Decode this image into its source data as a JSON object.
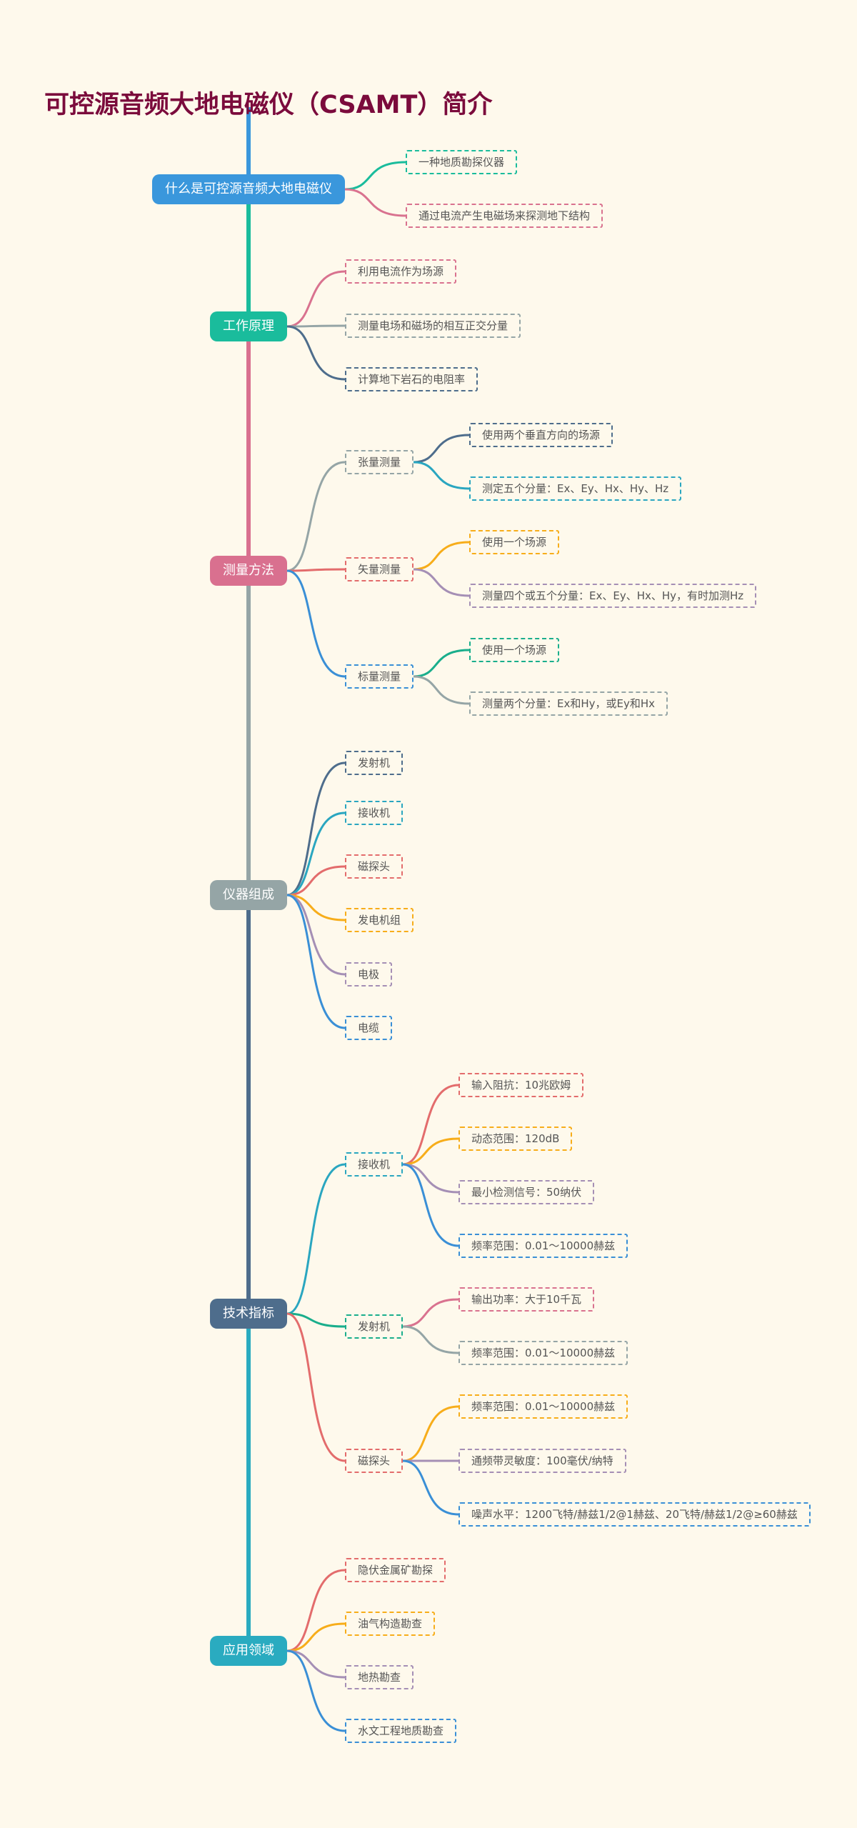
{
  "title": "可控源音频大地电磁仪（CSAMT）简介",
  "nodes": [
    {
      "label": "什么是可控源音频大地电磁仪",
      "color": "#3a97dc",
      "children": [
        {
          "label": "一种地质勘探仪器",
          "color": "#1abc9c"
        },
        {
          "label": "通过电流产生电磁场来探测地下结构",
          "color": "#d9728f"
        }
      ]
    },
    {
      "label": "工作原理",
      "color": "#1abc9c",
      "children": [
        {
          "label": "利用电流作为场源",
          "color": "#d9728f"
        },
        {
          "label": "测量电场和磁场的相互正交分量",
          "color": "#95a5a6"
        },
        {
          "label": "计算地下岩石的电阻率",
          "color": "#4e6d8c"
        }
      ]
    },
    {
      "label": "测量方法",
      "color": "#d9708f",
      "children": [
        {
          "label": "张量测量",
          "color": "#95a5a6",
          "children": [
            {
              "label": "使用两个垂直方向的场源",
              "color": "#4e6d8c"
            },
            {
              "label": "测定五个分量：Ex、Ey、Hx、Hy、Hz",
              "color": "#2aa6c0"
            }
          ]
        },
        {
          "label": "矢量测量",
          "color": "#e36c6c",
          "children": [
            {
              "label": "使用一个场源",
              "color": "#f7ad1a"
            },
            {
              "label": "测量四个或五个分量：Ex、Ey、Hx、Hy，有时加测Hz",
              "color": "#a58fb5"
            }
          ]
        },
        {
          "label": "标量测量",
          "color": "#3a8fd6",
          "children": [
            {
              "label": "使用一个场源",
              "color": "#1aae8c"
            },
            {
              "label": "测量两个分量：Ex和Hy，或Ey和Hx",
              "color": "#95a5a6"
            }
          ]
        }
      ]
    },
    {
      "label": "仪器组成",
      "color": "#95a5a6",
      "children": [
        {
          "label": "发射机",
          "color": "#4e6d8c"
        },
        {
          "label": "接收机",
          "color": "#2aa6c0"
        },
        {
          "label": "磁探头",
          "color": "#e36c6c"
        },
        {
          "label": "发电机组",
          "color": "#f7ad1a"
        },
        {
          "label": "电极",
          "color": "#a58fb5"
        },
        {
          "label": "电缆",
          "color": "#3a8fd6"
        }
      ]
    },
    {
      "label": "技术指标",
      "color": "#4e6d8c",
      "children": [
        {
          "label": "接收机",
          "color": "#2aa6c0",
          "children": [
            {
              "label": "输入阻抗：10兆欧姆",
              "color": "#e36c6c"
            },
            {
              "label": "动态范围：120dB",
              "color": "#f7ad1a"
            },
            {
              "label": "最小检测信号：50纳伏",
              "color": "#a58fb5"
            },
            {
              "label": "频率范围：0.01～10000赫兹",
              "color": "#3a8fd6"
            }
          ]
        },
        {
          "label": "发射机",
          "color": "#1aae8c",
          "children": [
            {
              "label": "输出功率：大于10千瓦",
              "color": "#d9728f"
            },
            {
              "label": "频率范围：0.01～10000赫兹",
              "color": "#95a5a6"
            }
          ]
        },
        {
          "label": "磁探头",
          "color": "#e36c6c",
          "children": [
            {
              "label": "频率范围：0.01～10000赫兹",
              "color": "#f7ad1a"
            },
            {
              "label": "通频带灵敏度：100毫伏/纳特",
              "color": "#a58fb5"
            },
            {
              "label": "噪声水平：1200飞特/赫兹1/2@1赫兹、20飞特/赫兹1/2@≥60赫兹",
              "color": "#3a8fd6"
            }
          ]
        }
      ]
    },
    {
      "label": "应用领域",
      "color": "#2aabc0",
      "children": [
        {
          "label": "隐伏金属矿勘探",
          "color": "#e36c6c"
        },
        {
          "label": "油气构造勘查",
          "color": "#f7ad1a"
        },
        {
          "label": "地热勘查",
          "color": "#a58fb5"
        },
        {
          "label": "水文工程地质勘查",
          "color": "#3a8fd6"
        }
      ]
    }
  ]
}
